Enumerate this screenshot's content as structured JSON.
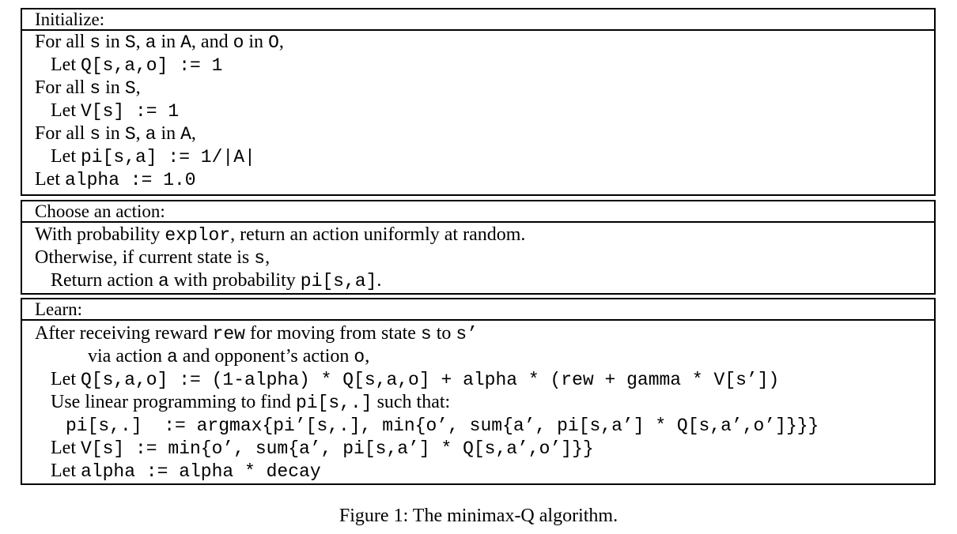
{
  "sections": [
    {
      "header": "Initialize:",
      "lines": [
        [
          {
            "t": "For all "
          },
          {
            "t": "s",
            "m": 1
          },
          {
            "t": " in "
          },
          {
            "t": "S",
            "m": 1
          },
          {
            "t": ", "
          },
          {
            "t": "a",
            "m": 1
          },
          {
            "t": " in "
          },
          {
            "t": "A",
            "m": 1
          },
          {
            "t": ", and "
          },
          {
            "t": "o",
            "m": 1
          },
          {
            "t": " in "
          },
          {
            "t": "O",
            "m": 1
          },
          {
            "t": ","
          }
        ],
        [
          {
            "t": "Let "
          },
          {
            "t": "Q[s,a,o] := 1",
            "m": 1
          }
        ],
        [
          {
            "t": "For all "
          },
          {
            "t": "s",
            "m": 1
          },
          {
            "t": " in "
          },
          {
            "t": "S",
            "m": 1
          },
          {
            "t": ","
          }
        ],
        [
          {
            "t": "Let "
          },
          {
            "t": "V[s] := 1",
            "m": 1
          }
        ],
        [
          {
            "t": "For all "
          },
          {
            "t": "s",
            "m": 1
          },
          {
            "t": " in "
          },
          {
            "t": "S",
            "m": 1
          },
          {
            "t": ", "
          },
          {
            "t": "a",
            "m": 1
          },
          {
            "t": " in "
          },
          {
            "t": "A",
            "m": 1
          },
          {
            "t": ","
          }
        ],
        [
          {
            "t": "Let "
          },
          {
            "t": "pi[s,a] := 1/|A|",
            "m": 1
          }
        ],
        [
          {
            "t": "Let "
          },
          {
            "t": "alpha := 1.0",
            "m": 1
          }
        ]
      ]
    },
    {
      "header": "Choose an action:",
      "lines": [
        [
          {
            "t": "With probability "
          },
          {
            "t": "explor",
            "m": 1
          },
          {
            "t": ", return an action uniformly at random."
          }
        ],
        [
          {
            "t": "Otherwise, if current state is "
          },
          {
            "t": "s",
            "m": 1
          },
          {
            "t": ","
          }
        ],
        [
          {
            "t": "Return action "
          },
          {
            "t": "a",
            "m": 1
          },
          {
            "t": " with probability "
          },
          {
            "t": "pi[s,a]",
            "m": 1
          },
          {
            "t": "."
          }
        ]
      ]
    },
    {
      "header": "Learn:",
      "lines": [
        [
          {
            "t": "After receiving reward "
          },
          {
            "t": "rew",
            "m": 1
          },
          {
            "t": " for moving from state "
          },
          {
            "t": "s",
            "m": 1
          },
          {
            "t": " to "
          },
          {
            "t": "s’",
            "m": 1
          }
        ],
        [
          {
            "t": "via action "
          },
          {
            "t": "a",
            "m": 1
          },
          {
            "t": " and opponent’s action "
          },
          {
            "t": "o",
            "m": 1
          },
          {
            "t": ","
          }
        ],
        [
          {
            "t": "Let "
          },
          {
            "t": "Q[s,a,o] := (1-alpha) * Q[s,a,o] + alpha * (rew + gamma * V[s’])",
            "m": 1
          }
        ],
        [
          {
            "t": "Use linear programming to find "
          },
          {
            "t": "pi[s,.]",
            "m": 1
          },
          {
            "t": " such that:"
          }
        ],
        [
          {
            "t": "pi[s,.]  := argmax{pi’[s,.], min{o’, sum{a’, pi[s,a’] * Q[s,a’,o’]}}}",
            "m": 1
          }
        ],
        [
          {
            "t": "Let "
          },
          {
            "t": "V[s] := min{o’, sum{a’, pi[s,a’] * Q[s,a’,o’]}}",
            "m": 1
          }
        ],
        [
          {
            "t": "Let "
          },
          {
            "t": "alpha := alpha * decay",
            "m": 1
          }
        ]
      ]
    }
  ],
  "caption": "Figure 1: The minimax-Q algorithm."
}
